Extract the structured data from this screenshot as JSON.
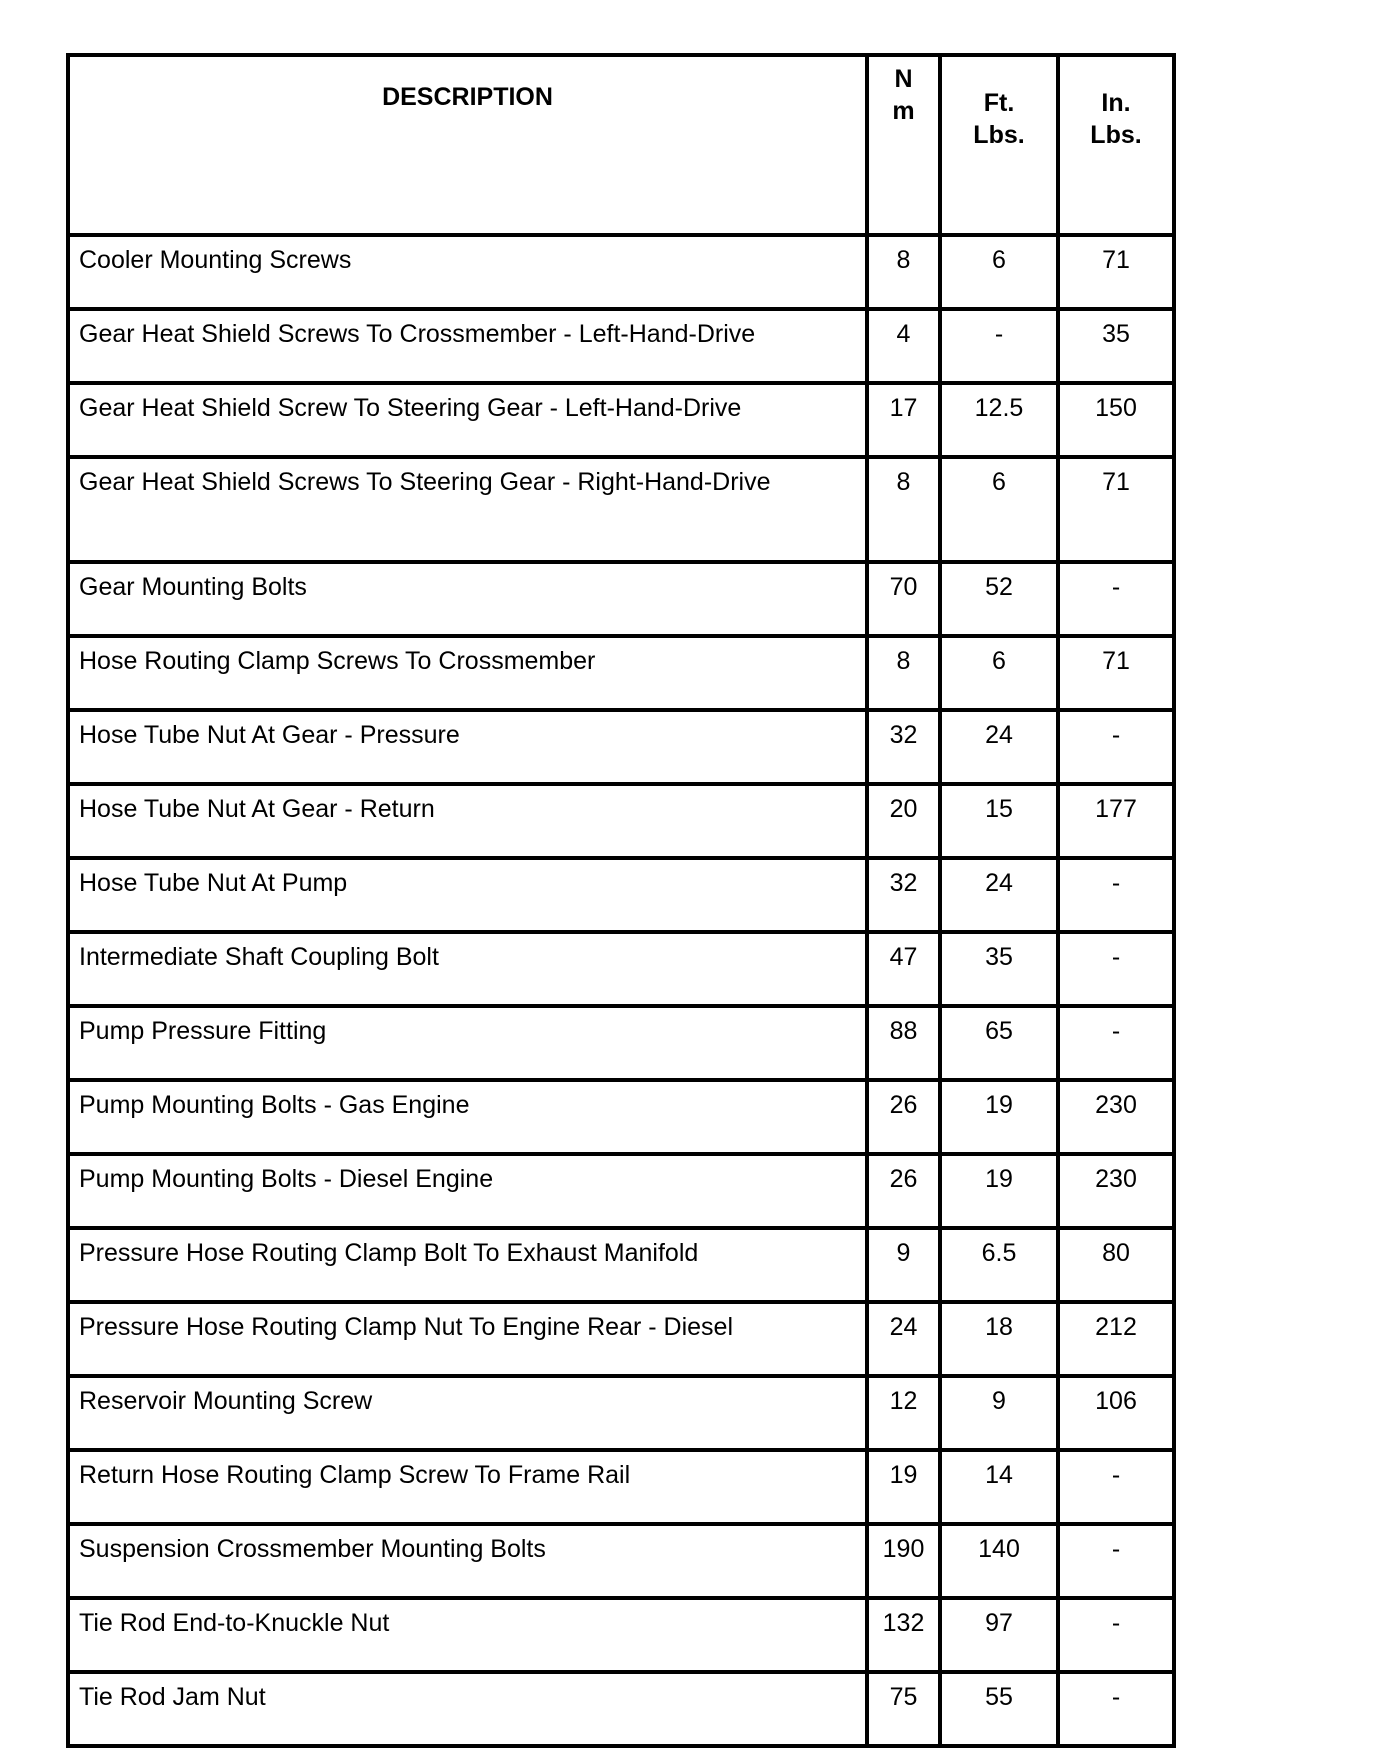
{
  "table": {
    "headers": {
      "description": "DESCRIPTION",
      "nm_line1": "N",
      "nm_line2": "m",
      "ft_line1": "Ft.",
      "ft_line2": "Lbs.",
      "in_line1": "In.",
      "in_line2": "Lbs."
    },
    "rows": [
      {
        "description": "Cooler Mounting Screws",
        "nm": "8",
        "ft_lbs": "6",
        "in_lbs": "71"
      },
      {
        "description": "Gear Heat Shield Screws To Crossmember - Left-Hand-Drive",
        "nm": "4",
        "ft_lbs": "-",
        "in_lbs": "35"
      },
      {
        "description": "Gear Heat Shield Screw To Steering Gear - Left-Hand-Drive",
        "nm": "17",
        "ft_lbs": "12.5",
        "in_lbs": "150"
      },
      {
        "description": "Gear Heat Shield Screws To Steering Gear - Right-Hand-Drive",
        "nm": "8",
        "ft_lbs": "6",
        "in_lbs": "71"
      },
      {
        "description": "Gear Mounting Bolts",
        "nm": "70",
        "ft_lbs": "52",
        "in_lbs": "-"
      },
      {
        "description": "Hose Routing Clamp Screws To Crossmember",
        "nm": "8",
        "ft_lbs": "6",
        "in_lbs": "71"
      },
      {
        "description": "Hose Tube Nut At Gear - Pressure",
        "nm": "32",
        "ft_lbs": "24",
        "in_lbs": "-"
      },
      {
        "description": "Hose Tube Nut At Gear - Return",
        "nm": "20",
        "ft_lbs": "15",
        "in_lbs": "177"
      },
      {
        "description": "Hose Tube Nut At Pump",
        "nm": "32",
        "ft_lbs": "24",
        "in_lbs": "-"
      },
      {
        "description": "Intermediate Shaft Coupling Bolt",
        "nm": "47",
        "ft_lbs": "35",
        "in_lbs": "-"
      },
      {
        "description": "Pump Pressure Fitting",
        "nm": "88",
        "ft_lbs": "65",
        "in_lbs": "-"
      },
      {
        "description": "Pump Mounting Bolts - Gas Engine",
        "nm": "26",
        "ft_lbs": "19",
        "in_lbs": "230"
      },
      {
        "description": "Pump Mounting Bolts - Diesel Engine",
        "nm": "26",
        "ft_lbs": "19",
        "in_lbs": "230"
      },
      {
        "description": "Pressure Hose Routing Clamp Bolt To Exhaust Manifold",
        "nm": "9",
        "ft_lbs": "6.5",
        "in_lbs": "80"
      },
      {
        "description": "Pressure Hose Routing Clamp Nut To Engine Rear - Diesel",
        "nm": "24",
        "ft_lbs": "18",
        "in_lbs": "212"
      },
      {
        "description": "Reservoir Mounting Screw",
        "nm": "12",
        "ft_lbs": "9",
        "in_lbs": "106"
      },
      {
        "description": "Return Hose Routing Clamp Screw To Frame Rail",
        "nm": "19",
        "ft_lbs": "14",
        "in_lbs": "-"
      },
      {
        "description": "Suspension Crossmember Mounting Bolts",
        "nm": "190",
        "ft_lbs": "140",
        "in_lbs": "-"
      },
      {
        "description": "Tie Rod End-to-Knuckle Nut",
        "nm": "132",
        "ft_lbs": "97",
        "in_lbs": "-"
      },
      {
        "description": "Tie Rod Jam Nut",
        "nm": "75",
        "ft_lbs": "55",
        "in_lbs": "-"
      }
    ]
  }
}
